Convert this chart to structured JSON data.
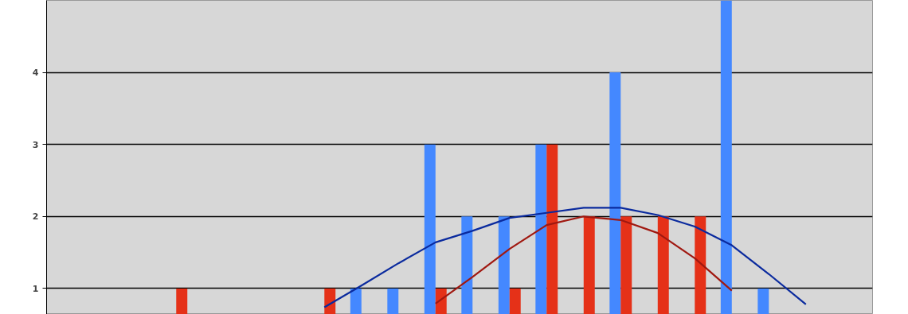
{
  "chart_data": {
    "type": "bar",
    "categories": [
      null,
      null,
      null,
      null,
      null,
      null,
      null,
      null,
      null,
      null,
      null,
      null,
      null,
      null,
      null,
      null,
      null,
      null,
      null,
      null,
      null,
      null
    ],
    "series": [
      {
        "color": "#4488ff",
        "values": [
          null,
          null,
          null,
          null,
          null,
          null,
          null,
          null,
          1,
          1,
          3,
          2,
          2,
          3,
          null,
          4,
          null,
          null,
          5,
          1,
          null,
          null
        ]
      },
      {
        "color": "#e53118",
        "values": [
          null,
          null,
          null,
          1,
          null,
          null,
          null,
          1,
          null,
          null,
          1,
          null,
          1,
          3,
          2,
          2,
          2,
          2,
          null,
          null,
          null,
          null
        ]
      },
      {
        "type": "line",
        "color": "#0a2a9e",
        "values": [
          null,
          null,
          null,
          null,
          null,
          null,
          null,
          0.74,
          1.04,
          1.35,
          1.64,
          1.8,
          1.98,
          2.05,
          2.12,
          2.12,
          2.02,
          1.86,
          1.6,
          1.2,
          0.78,
          null
        ]
      },
      {
        "type": "line",
        "color": "#a01810",
        "values": [
          null,
          null,
          null,
          null,
          null,
          null,
          null,
          null,
          null,
          null,
          0.79,
          1.16,
          1.55,
          1.88,
          2.0,
          1.95,
          1.77,
          1.42,
          0.97,
          null,
          null,
          null
        ]
      }
    ],
    "ylim": [
      0.64,
      5
    ],
    "yticks": [
      1,
      2,
      3,
      4
    ],
    "grid": "y",
    "tick_labels": "y"
  }
}
